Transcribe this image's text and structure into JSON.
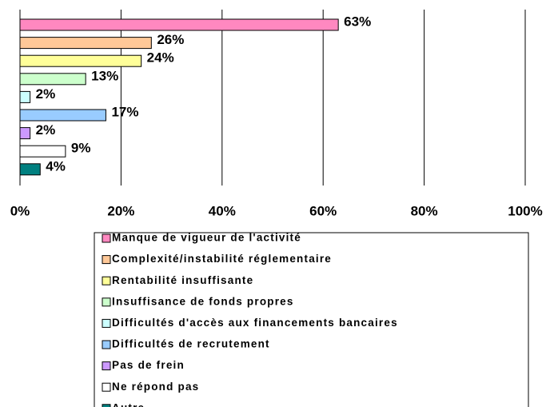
{
  "chart_data": {
    "type": "bar",
    "orientation": "horizontal",
    "categories": [
      "Manque de vigueur de l'activité",
      "Complexité/instabilité réglementaire",
      "Rentabilité insuffisante",
      "Insuffisance de fonds propres",
      "Difficultés d'accès aux financements bancaires",
      "Difficultés de recrutement",
      "Pas de frein",
      "Ne répond pas",
      "Autre"
    ],
    "values": [
      63,
      26,
      24,
      13,
      2,
      17,
      2,
      9,
      4
    ],
    "value_labels": [
      "63%",
      "26%",
      "24%",
      "13%",
      "2%",
      "17%",
      "2%",
      "9%",
      "4%"
    ],
    "colors": [
      "#ff88c0",
      "#ffc898",
      "#ffff99",
      "#ccffcc",
      "#ccffff",
      "#99ccff",
      "#cc99ff",
      "#ffffff",
      "#008080"
    ],
    "xlim": [
      0,
      100
    ],
    "xticks": [
      {
        "value": 0,
        "label": "0%"
      },
      {
        "value": 20,
        "label": "20%"
      },
      {
        "value": 40,
        "label": "40%"
      },
      {
        "value": 60,
        "label": "60%"
      },
      {
        "value": 80,
        "label": "80%"
      },
      {
        "value": 100,
        "label": "100%"
      }
    ],
    "grid": true,
    "legend": "bottom"
  }
}
